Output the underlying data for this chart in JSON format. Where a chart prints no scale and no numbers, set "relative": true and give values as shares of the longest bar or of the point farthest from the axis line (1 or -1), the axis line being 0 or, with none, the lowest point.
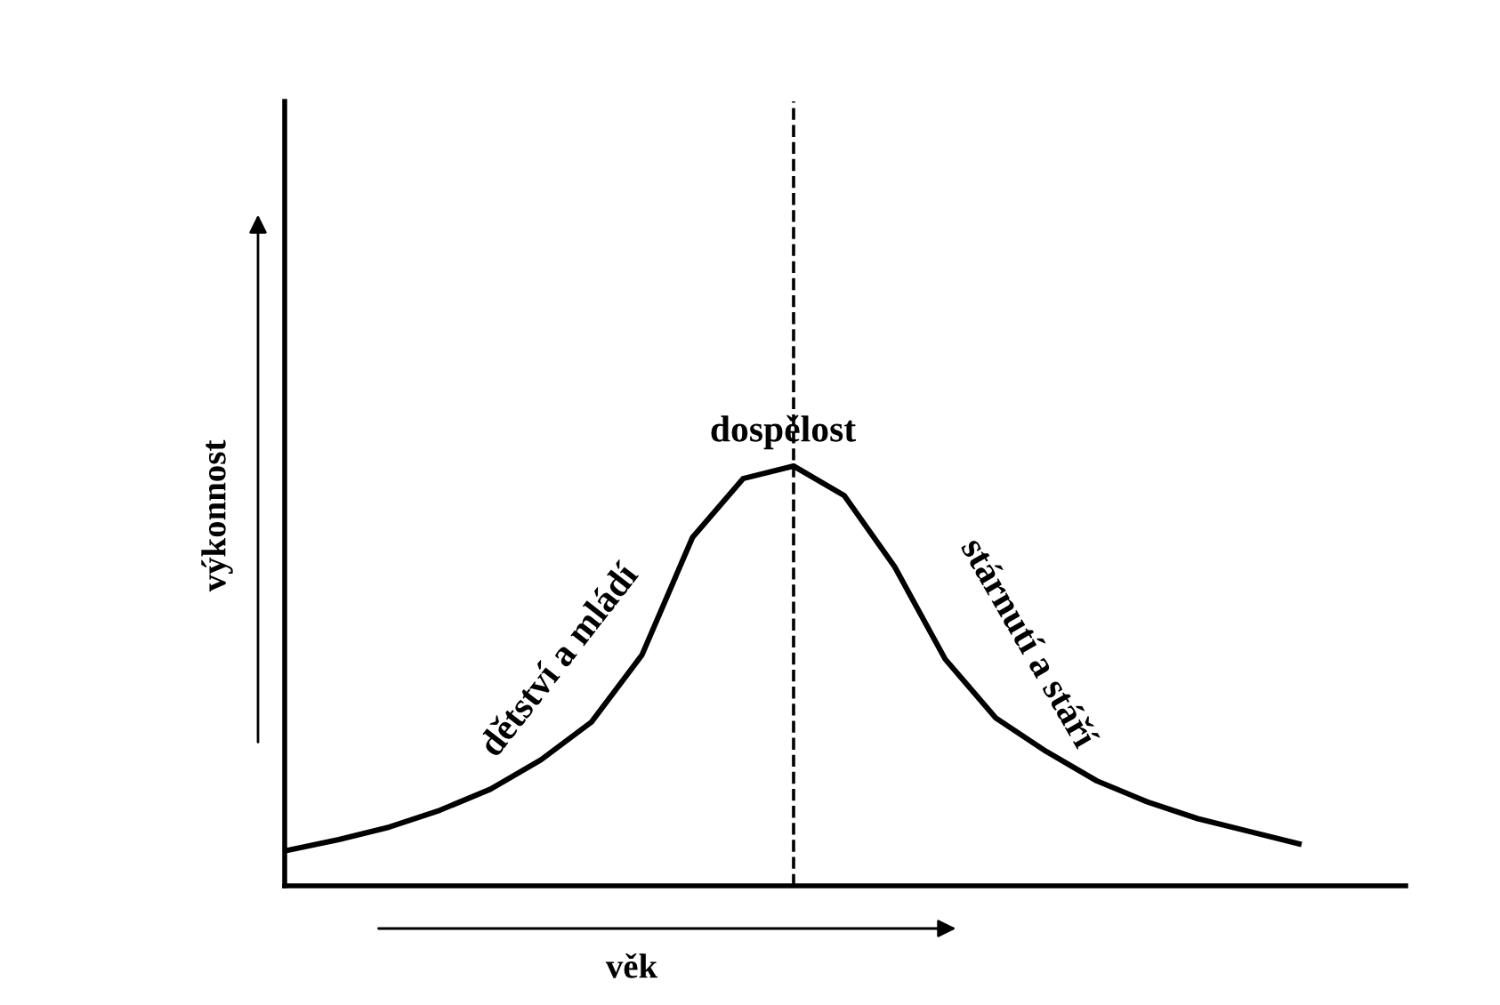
{
  "chart_data": {
    "type": "line",
    "relative": true,
    "xlabel": "věk",
    "ylabel": "výkonnost",
    "color": "#000000",
    "line_style": "solid",
    "marker": "none",
    "legend": false,
    "categories": [
      null,
      null,
      null,
      null,
      null,
      null,
      null,
      null,
      null,
      null,
      null,
      null,
      null,
      null,
      null,
      null,
      null,
      null,
      null,
      null,
      null
    ],
    "values": [
      0.085,
      0.11,
      0.14,
      0.18,
      0.23,
      0.3,
      0.39,
      0.55,
      0.83,
      0.97,
      1.0,
      0.93,
      0.76,
      0.54,
      0.4,
      0.32,
      0.25,
      0.2,
      0.16,
      0.13,
      0.1
    ],
    "annotations": [
      "dětství a mládí",
      "dospělost",
      "stárnutí a stáří"
    ]
  }
}
